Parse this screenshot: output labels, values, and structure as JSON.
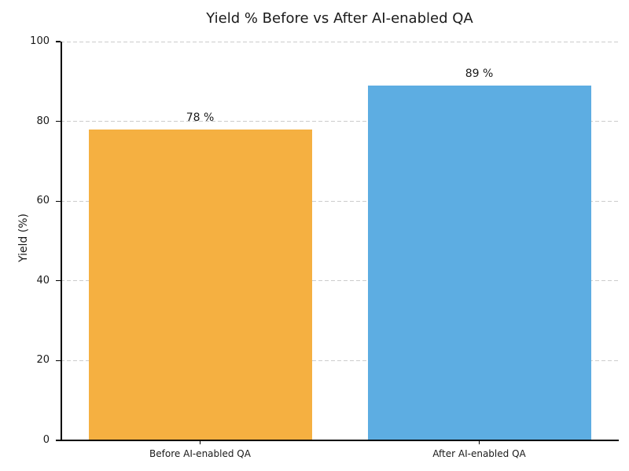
{
  "chart_data": {
    "type": "bar",
    "title": "Yield % Before vs After AI-enabled QA",
    "categories": [
      "Before AI-enabled QA",
      "After AI-enabled QA"
    ],
    "values": [
      78,
      89
    ],
    "value_labels": [
      "78 %",
      "89 %"
    ],
    "bar_colors": [
      "#F5B041",
      "#5DADE2"
    ],
    "xlabel": "",
    "ylabel": "Yield (%)",
    "ylim": [
      0,
      100
    ],
    "yticks": [
      0,
      20,
      40,
      60,
      80,
      100
    ],
    "grid": "horizontal-dashed",
    "legend": "none"
  },
  "colors": {
    "background": "#ffffff",
    "grid": "#cccccc",
    "axis": "#000000",
    "text": "#1a1a1a"
  }
}
